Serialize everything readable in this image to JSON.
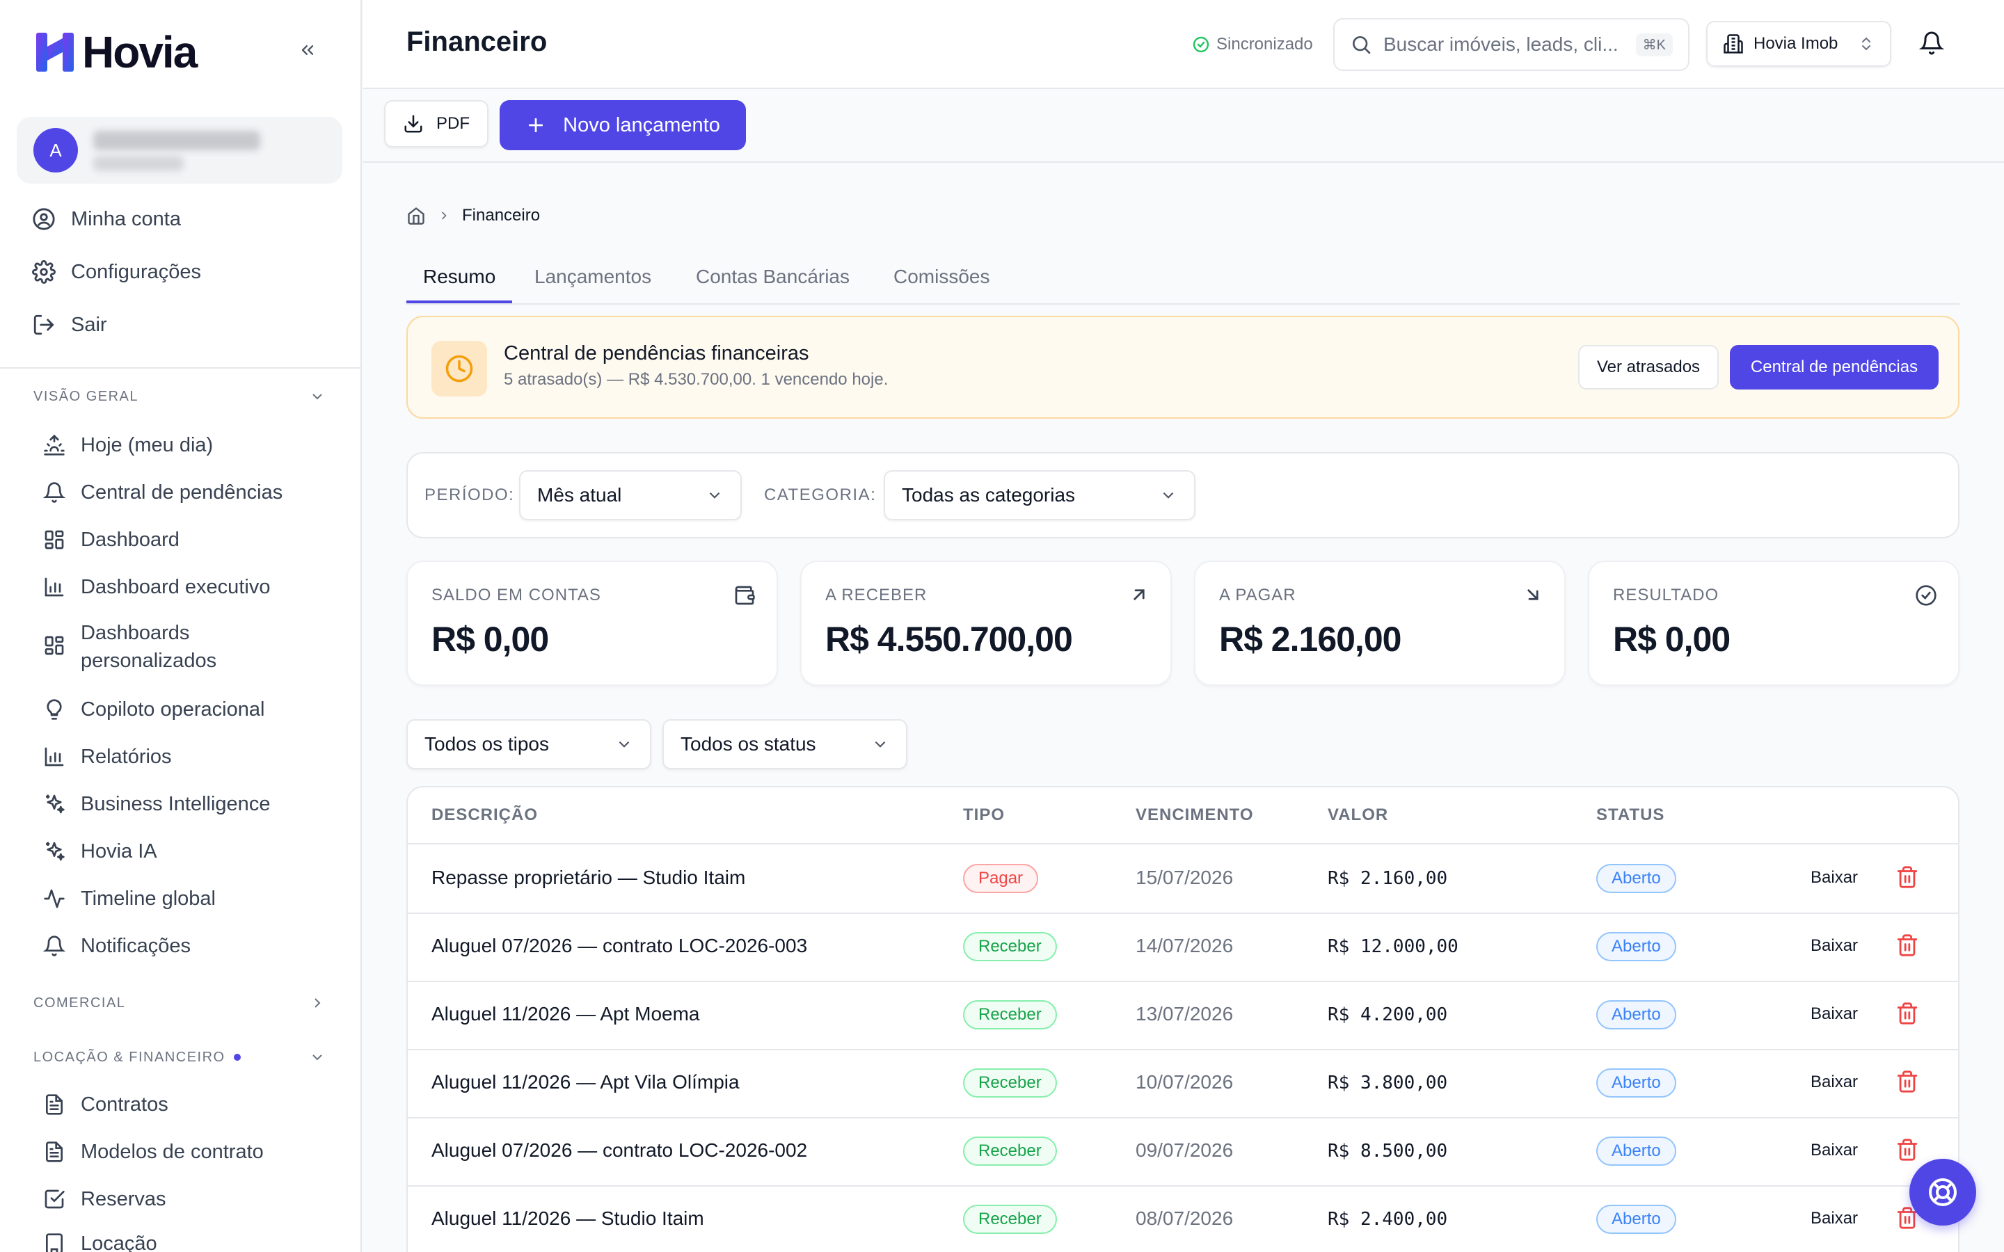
{
  "brand": {
    "name": "Hovia"
  },
  "user": {
    "initial": "A"
  },
  "account_menu": [
    {
      "label": "Minha conta",
      "icon": "user-circle-icon"
    },
    {
      "label": "Configurações",
      "icon": "gear-icon"
    },
    {
      "label": "Sair",
      "icon": "logout-icon"
    }
  ],
  "sections": {
    "overview": {
      "title": "VISÃO GERAL",
      "items": [
        {
          "label": "Hoje (meu dia)",
          "icon": "sunrise-icon"
        },
        {
          "label": "Central de pendências",
          "icon": "bell-icon"
        },
        {
          "label": "Dashboard",
          "icon": "grid-icon"
        },
        {
          "label": "Dashboard executivo",
          "icon": "bar-chart-icon"
        },
        {
          "label": "Dashboards personalizados",
          "icon": "grid-icon"
        },
        {
          "label": "Copiloto operacional",
          "icon": "lightbulb-icon"
        },
        {
          "label": "Relatórios",
          "icon": "bar-chart-icon"
        },
        {
          "label": "Business Intelligence",
          "icon": "sparkles-icon"
        },
        {
          "label": "Hovia IA",
          "icon": "sparkles-icon"
        },
        {
          "label": "Timeline global",
          "icon": "activity-icon"
        },
        {
          "label": "Notificações",
          "icon": "bell-icon"
        }
      ]
    },
    "commercial": {
      "title": "COMERCIAL"
    },
    "rental": {
      "title": "LOCAÇÃO & FINANCEIRO",
      "items": [
        {
          "label": "Contratos",
          "icon": "document-icon"
        },
        {
          "label": "Modelos de contrato",
          "icon": "document-icon"
        },
        {
          "label": "Reservas",
          "icon": "check-square-icon"
        },
        {
          "label": "Locação",
          "icon": "building-icon"
        }
      ]
    }
  },
  "header": {
    "title": "Financeiro",
    "sync_status": "Sincronizado",
    "search_placeholder": "Buscar imóveis, leads, cli...",
    "search_shortcut": "⌘K",
    "org": "Hovia Imob"
  },
  "actions": {
    "pdf": "PDF",
    "new_entry": "Novo lançamento"
  },
  "breadcrumb": {
    "current": "Financeiro"
  },
  "tabs": [
    "Resumo",
    "Lançamentos",
    "Contas Bancárias",
    "Comissões"
  ],
  "alert": {
    "title": "Central de pendências financeiras",
    "subtitle": "5 atrasado(s) — R$ 4.530.700,00. 1 vencendo hoje.",
    "btn_overdue": "Ver atrasados",
    "btn_central": "Central de pendências"
  },
  "filters": {
    "period_label": "PERÍODO:",
    "period_value": "Mês atual",
    "category_label": "CATEGORIA:",
    "category_value": "Todas as categorias"
  },
  "kpis": [
    {
      "label": "SALDO EM CONTAS",
      "value": "R$ 0,00",
      "icon": "wallet-icon"
    },
    {
      "label": "A RECEBER",
      "value": "R$ 4.550.700,00",
      "icon": "arrow-up-right-icon"
    },
    {
      "label": "A PAGAR",
      "value": "R$ 2.160,00",
      "icon": "arrow-down-right-icon"
    },
    {
      "label": "RESULTADO",
      "value": "R$ 0,00",
      "icon": "check-circle-icon"
    }
  ],
  "table_filters": {
    "type": "Todos os tipos",
    "status": "Todos os status"
  },
  "table": {
    "columns": [
      "DESCRIÇÃO",
      "TIPO",
      "VENCIMENTO",
      "VALOR",
      "STATUS"
    ],
    "action_label": "Baixar",
    "rows": [
      {
        "desc": "Repasse proprietário — Studio Itaim",
        "type": "Pagar",
        "due": "15/07/2026",
        "value": "R$ 2.160,00",
        "status": "Aberto"
      },
      {
        "desc": "Aluguel 07/2026 — contrato LOC-2026-003",
        "type": "Receber",
        "due": "14/07/2026",
        "value": "R$ 12.000,00",
        "status": "Aberto"
      },
      {
        "desc": "Aluguel 11/2026 — Apt Moema",
        "type": "Receber",
        "due": "13/07/2026",
        "value": "R$ 4.200,00",
        "status": "Aberto"
      },
      {
        "desc": "Aluguel 11/2026 — Apt Vila Olímpia",
        "type": "Receber",
        "due": "10/07/2026",
        "value": "R$ 3.800,00",
        "status": "Aberto"
      },
      {
        "desc": "Aluguel 07/2026 — contrato LOC-2026-002",
        "type": "Receber",
        "due": "09/07/2026",
        "value": "R$ 8.500,00",
        "status": "Aberto"
      },
      {
        "desc": "Aluguel 11/2026 — Studio Itaim",
        "type": "Receber",
        "due": "08/07/2026",
        "value": "R$ 2.400,00",
        "status": "Aberto"
      }
    ]
  },
  "colors": {
    "accent": "#4f46e5",
    "pay": "#ef4444",
    "receive": "#16a34a",
    "open": "#3b82f6",
    "warning": "#f59e0b"
  }
}
